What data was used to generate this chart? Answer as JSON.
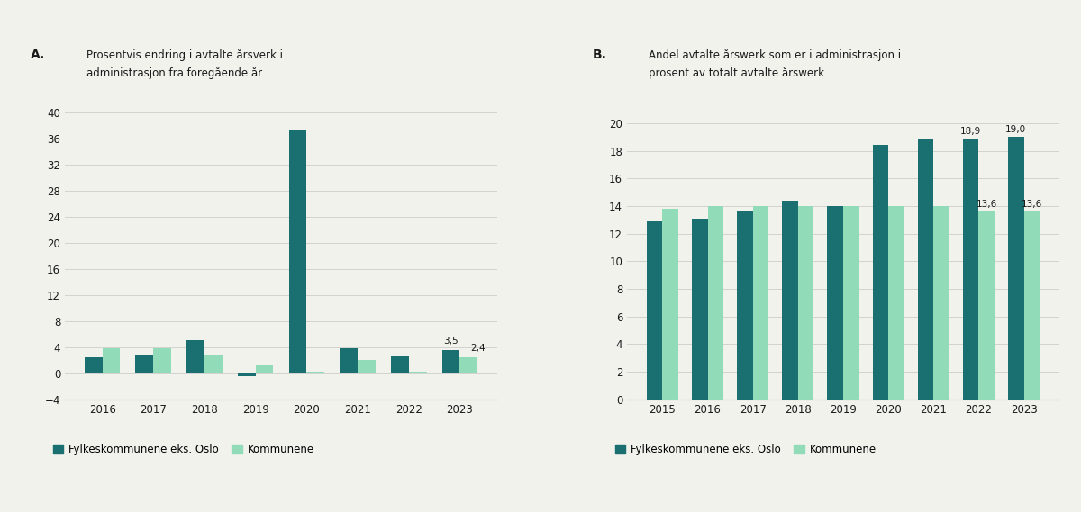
{
  "left": {
    "title_label": "A.",
    "title": "Prosentvis endring i avtalte årsverk i\nadministrasjon fra foregående år",
    "years": [
      2016,
      2017,
      2018,
      2019,
      2020,
      2021,
      2022,
      2023
    ],
    "fylke": [
      2.5,
      2.8,
      5.1,
      -0.5,
      37.2,
      3.8,
      2.6,
      3.5
    ],
    "kommune": [
      3.8,
      3.8,
      2.8,
      1.2,
      0.3,
      2.0,
      0.2,
      2.4
    ],
    "annotation_fylke": "3,5",
    "annotation_kommune": "2,4",
    "yticks": [
      -4,
      0,
      4,
      8,
      12,
      16,
      20,
      24,
      28,
      32,
      36,
      40
    ],
    "ylim": [
      -4,
      41.5
    ],
    "bar_width": 0.35
  },
  "right": {
    "title_label": "B.",
    "title": "Andel avtalte årswerk som er i administrasjon i\nprosent av totalt avtalte årswerk",
    "years": [
      2015,
      2016,
      2017,
      2018,
      2019,
      2020,
      2021,
      2022,
      2023
    ],
    "fylke": [
      12.9,
      13.1,
      13.6,
      14.4,
      14.0,
      18.4,
      18.8,
      18.9,
      19.0
    ],
    "kommune": [
      13.8,
      14.0,
      14.0,
      14.0,
      14.0,
      14.0,
      14.0,
      13.6,
      13.6
    ],
    "ann_2022_fylke": "18,9",
    "ann_2022_kommune": "13,6",
    "ann_2023_fylke": "19,0",
    "ann_2023_kommune": "13,6",
    "yticks": [
      0,
      2,
      4,
      6,
      8,
      10,
      12,
      14,
      16,
      18,
      20
    ],
    "ylim": [
      0,
      21.5
    ],
    "bar_width": 0.35
  },
  "color_fylke": "#1a7070",
  "color_kommune": "#92dbb8",
  "background_color": "#f2f2ed",
  "legend_fylke": "Fylkeskommunene eks. Oslo",
  "legend_kommune": "Kommunene",
  "font_color": "#1a1a1a",
  "grid_color": "#cccccc",
  "spine_color": "#999999"
}
